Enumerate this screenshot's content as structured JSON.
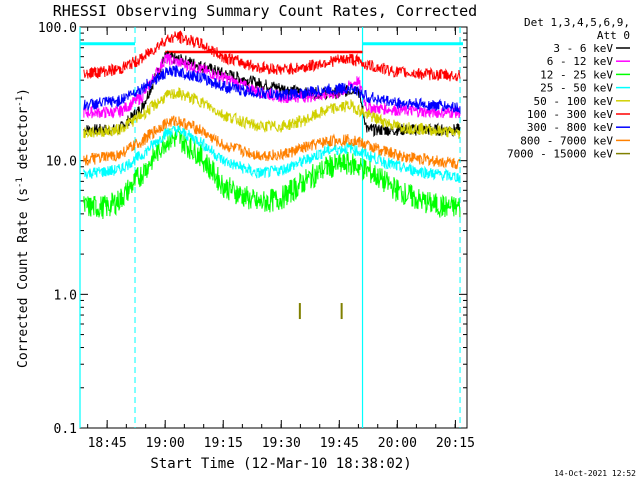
{
  "chart_data": {
    "type": "line",
    "title": "RHESSI Observing Summary Count Rates, Corrected",
    "xlabel": "Start Time (12-Mar-10 18:38:02)",
    "ylabel": "Corrected Count Rate (s⁻¹ detector⁻¹)",
    "ylabel_main": "Corrected Count Rate (s",
    "ylabel_sup1": "-1",
    "ylabel_mid": " detector",
    "ylabel_sup2": "-1",
    "ylabel_end": ")",
    "yscale": "log",
    "ylim": [
      0.1,
      100
    ],
    "xlim_minutes": [
      18.633,
      20.3
    ],
    "x_ticks": [
      {
        "label": "18:45",
        "minute": 18.75
      },
      {
        "label": "19:00",
        "minute": 19.0
      },
      {
        "label": "19:15",
        "minute": 19.25
      },
      {
        "label": "19:30",
        "minute": 19.5
      },
      {
        "label": "19:45",
        "minute": 19.75
      },
      {
        "label": "20:00",
        "minute": 20.0
      },
      {
        "label": "20:15",
        "minute": 20.25
      }
    ],
    "y_ticks": [
      {
        "label": "100.0",
        "value": 100
      },
      {
        "label": "10.0",
        "value": 10
      },
      {
        "label": "1.0",
        "value": 1
      },
      {
        "label": "0.1",
        "value": 0.1
      }
    ],
    "legend": {
      "header1": "Det 1,3,4,5,6,9,",
      "header2": "Att 0",
      "placement": "right"
    },
    "series": [
      {
        "name": "3 - 6 keV",
        "color": "#000000",
        "points": [
          [
            18.65,
            17
          ],
          [
            18.8,
            17
          ],
          [
            18.9,
            25
          ],
          [
            19.0,
            60
          ],
          [
            19.1,
            55
          ],
          [
            19.25,
            45
          ],
          [
            19.4,
            38
          ],
          [
            19.5,
            35
          ],
          [
            19.6,
            32
          ],
          [
            19.75,
            32
          ],
          [
            19.83,
            35
          ],
          [
            19.87,
            17
          ],
          [
            20.0,
            17
          ],
          [
            20.15,
            17
          ],
          [
            20.27,
            17
          ]
        ]
      },
      {
        "name": "6 - 12 keV",
        "color": "#ff00ff",
        "points": [
          [
            18.65,
            23
          ],
          [
            18.8,
            23
          ],
          [
            18.9,
            30
          ],
          [
            19.0,
            58
          ],
          [
            19.1,
            52
          ],
          [
            19.25,
            42
          ],
          [
            19.4,
            33
          ],
          [
            19.5,
            30
          ],
          [
            19.6,
            30
          ],
          [
            19.75,
            32
          ],
          [
            19.83,
            40
          ],
          [
            19.87,
            25
          ],
          [
            20.0,
            24
          ],
          [
            20.15,
            23
          ],
          [
            20.27,
            23
          ]
        ]
      },
      {
        "name": "12 - 25 keV",
        "color": "#00ff00",
        "points": [
          [
            18.65,
            4.5
          ],
          [
            18.75,
            4.5
          ],
          [
            18.8,
            5
          ],
          [
            18.9,
            8
          ],
          [
            19.0,
            14
          ],
          [
            19.05,
            15
          ],
          [
            19.15,
            11
          ],
          [
            19.25,
            6.5
          ],
          [
            19.4,
            4.8
          ],
          [
            19.5,
            5.2
          ],
          [
            19.6,
            7
          ],
          [
            19.7,
            9
          ],
          [
            19.8,
            9.5
          ],
          [
            19.87,
            8.5
          ],
          [
            20.0,
            6
          ],
          [
            20.1,
            5
          ],
          [
            20.2,
            4.5
          ],
          [
            20.27,
            4.5
          ]
        ]
      },
      {
        "name": "25 - 50 keV",
        "color": "#00ffff",
        "points": [
          [
            18.65,
            8
          ],
          [
            18.8,
            8.5
          ],
          [
            18.9,
            11
          ],
          [
            19.0,
            16
          ],
          [
            19.05,
            17
          ],
          [
            19.15,
            14
          ],
          [
            19.25,
            10
          ],
          [
            19.4,
            8
          ],
          [
            19.5,
            8.5
          ],
          [
            19.6,
            10
          ],
          [
            19.7,
            12
          ],
          [
            19.8,
            12.5
          ],
          [
            19.87,
            11
          ],
          [
            20.0,
            9
          ],
          [
            20.15,
            8
          ],
          [
            20.27,
            7.5
          ]
        ]
      },
      {
        "name": "50 - 100 keV",
        "color": "#d0d000",
        "points": [
          [
            18.65,
            16
          ],
          [
            18.8,
            17
          ],
          [
            18.9,
            22
          ],
          [
            19.0,
            30
          ],
          [
            19.05,
            32
          ],
          [
            19.15,
            28
          ],
          [
            19.25,
            22
          ],
          [
            19.4,
            18
          ],
          [
            19.5,
            18
          ],
          [
            19.6,
            20
          ],
          [
            19.7,
            24
          ],
          [
            19.8,
            26
          ],
          [
            19.87,
            22
          ],
          [
            20.0,
            18
          ],
          [
            20.15,
            17
          ],
          [
            20.27,
            16
          ]
        ]
      },
      {
        "name": "100 - 300 keV",
        "color": "#ff0000",
        "points": [
          [
            18.65,
            45
          ],
          [
            18.8,
            48
          ],
          [
            18.9,
            58
          ],
          [
            19.0,
            80
          ],
          [
            19.05,
            85
          ],
          [
            19.15,
            75
          ],
          [
            19.25,
            60
          ],
          [
            19.4,
            50
          ],
          [
            19.5,
            48
          ],
          [
            19.6,
            50
          ],
          [
            19.7,
            55
          ],
          [
            19.8,
            58
          ],
          [
            19.87,
            52
          ],
          [
            20.0,
            46
          ],
          [
            20.15,
            44
          ],
          [
            20.27,
            43
          ]
        ]
      },
      {
        "name": "300 - 800 keV",
        "color": "#0000ff",
        "points": [
          [
            18.65,
            26
          ],
          [
            18.8,
            28
          ],
          [
            18.9,
            35
          ],
          [
            19.0,
            45
          ],
          [
            19.05,
            47
          ],
          [
            19.15,
            42
          ],
          [
            19.25,
            36
          ],
          [
            19.4,
            32
          ],
          [
            19.5,
            31
          ],
          [
            19.6,
            32
          ],
          [
            19.7,
            34
          ],
          [
            19.8,
            35
          ],
          [
            19.87,
            30
          ],
          [
            20.0,
            27
          ],
          [
            20.15,
            26
          ],
          [
            20.27,
            25
          ]
        ]
      },
      {
        "name": "800 - 7000 keV",
        "color": "#ff8000",
        "points": [
          [
            18.65,
            10
          ],
          [
            18.8,
            11
          ],
          [
            18.9,
            14
          ],
          [
            19.0,
            19
          ],
          [
            19.05,
            20
          ],
          [
            19.15,
            17
          ],
          [
            19.25,
            13
          ],
          [
            19.4,
            11
          ],
          [
            19.5,
            11
          ],
          [
            19.6,
            12.5
          ],
          [
            19.7,
            14
          ],
          [
            19.8,
            14.5
          ],
          [
            19.87,
            13
          ],
          [
            20.0,
            11
          ],
          [
            20.15,
            10
          ],
          [
            20.27,
            9.5
          ]
        ]
      },
      {
        "name": "7000 - 15000 keV",
        "color": "#808000",
        "points": []
      }
    ],
    "annotations": {
      "flat_line_red": {
        "value": 65,
        "from_minute": 19.0,
        "to_minute": 19.85,
        "color": "#ff0000"
      },
      "attenuator_cyan": {
        "value": 75,
        "color": "#00ffff"
      },
      "solid_markers_minutes": [
        18.633,
        19.85
      ],
      "dashed_markers_minutes": [
        18.87,
        20.27
      ],
      "olive_marks": [
        [
          19.58,
          0.75
        ],
        [
          19.76,
          0.75
        ]
      ]
    },
    "grid": false
  },
  "footer": {
    "timestamp": "14-Oct-2021 12:52"
  }
}
